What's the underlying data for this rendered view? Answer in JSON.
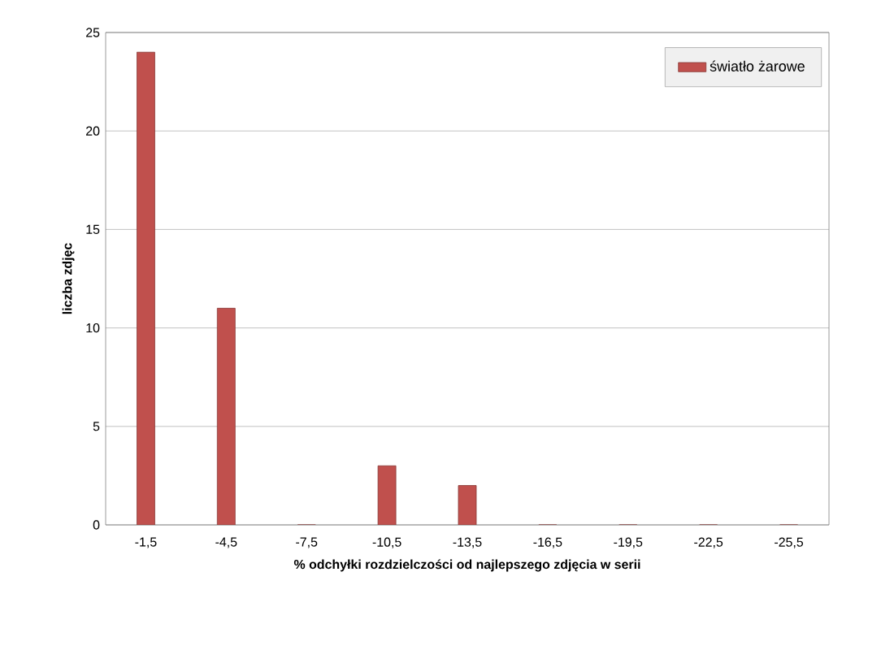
{
  "chart_data": {
    "type": "bar",
    "xlabel": "% odchyłki rozdzielczości od najlepszego zdjęcia w serii",
    "ylabel": "liczba zdjęc",
    "categories": [
      "-1,5",
      "-4,5",
      "-7,5",
      "-10,5",
      "-13,5",
      "-16,5",
      "-19,5",
      "-22,5",
      "-25,5"
    ],
    "series": [
      {
        "name": "światło żarowe",
        "color": "#c0504d",
        "values": [
          24,
          11,
          0,
          3,
          2,
          0,
          0,
          0,
          0
        ]
      }
    ],
    "ylim": [
      0,
      25
    ],
    "yticks": [
      0,
      5,
      10,
      15,
      20,
      25
    ],
    "grid": "y",
    "legend": "top right"
  }
}
